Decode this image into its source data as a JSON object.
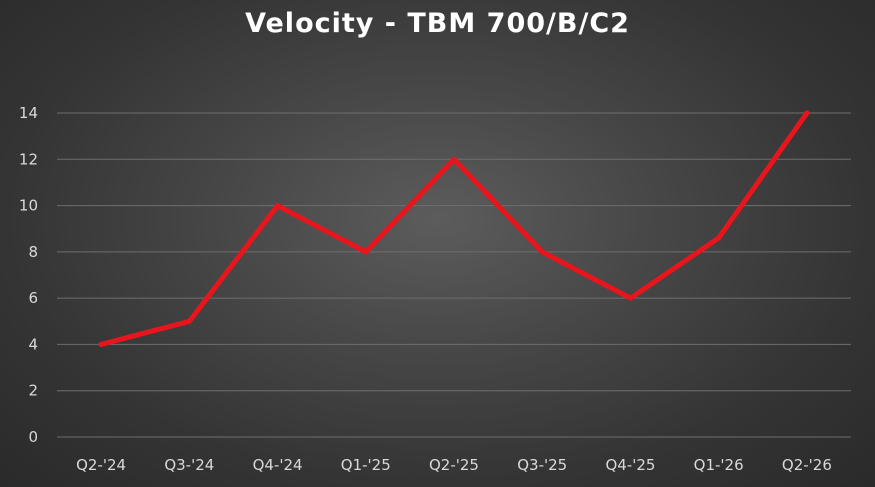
{
  "chart_data": {
    "type": "line",
    "title": "Velocity - TBM 700/B/C2",
    "xlabel": "",
    "ylabel": "",
    "categories": [
      "Q2-'24",
      "Q3-'24",
      "Q4-'24",
      "Q1-'25",
      "Q2-'25",
      "Q3-'25",
      "Q4-'25",
      "Q1-'26",
      "Q2-'26"
    ],
    "series": [
      {
        "values": [
          4,
          5,
          10,
          8,
          12,
          8,
          6,
          8.6,
          14
        ]
      }
    ],
    "ylim": [
      0,
      14
    ],
    "yticks": [
      0,
      2,
      4,
      6,
      8,
      10,
      12,
      14
    ],
    "grid": true,
    "legend": "none",
    "colors": {
      "line": "#e8151c",
      "grid": "#6e6e6e",
      "labels": "#d9d9d9",
      "title": "#ffffff"
    }
  }
}
